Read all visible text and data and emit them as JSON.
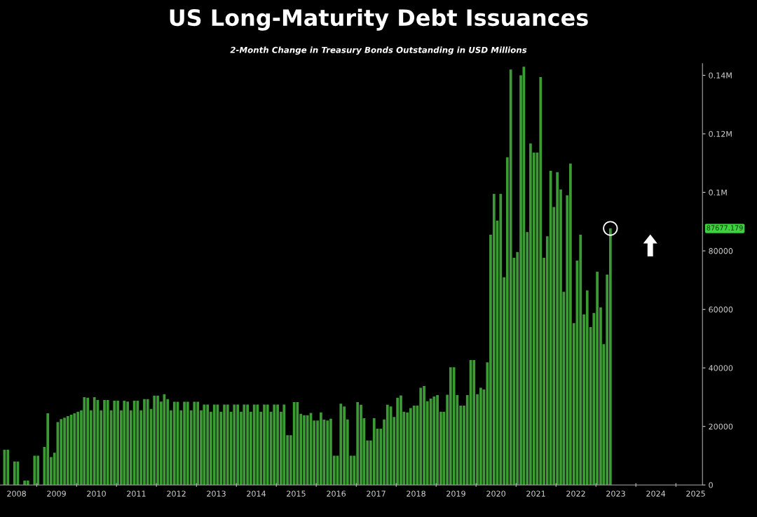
{
  "chart_data": {
    "type": "bar",
    "title": "US Long-Maturity Debt Issuances",
    "subtitle": "2-Month Change in Treasury Bonds Outstanding in USD Millions",
    "x": [
      "2008-03",
      "2008-04",
      "2008-05",
      "2008-06",
      "2008-07",
      "2008-08",
      "2008-09",
      "2008-10",
      "2008-11",
      "2008-12",
      "2009-01",
      "2009-02",
      "2009-03",
      "2009-04",
      "2009-05",
      "2009-06",
      "2009-07",
      "2009-08",
      "2009-09",
      "2009-10",
      "2009-11",
      "2009-12",
      "2010-01",
      "2010-02",
      "2010-03",
      "2010-04",
      "2010-05",
      "2010-06",
      "2010-07",
      "2010-08",
      "2010-09",
      "2010-10",
      "2010-11",
      "2010-12",
      "2011-01",
      "2011-02",
      "2011-03",
      "2011-04",
      "2011-05",
      "2011-06",
      "2011-07",
      "2011-08",
      "2011-09",
      "2011-10",
      "2011-11",
      "2011-12",
      "2012-01",
      "2012-02",
      "2012-03",
      "2012-04",
      "2012-05",
      "2012-06",
      "2012-07",
      "2012-08",
      "2012-09",
      "2012-10",
      "2012-11",
      "2012-12",
      "2013-01",
      "2013-02",
      "2013-03",
      "2013-04",
      "2013-05",
      "2013-06",
      "2013-07",
      "2013-08",
      "2013-09",
      "2013-10",
      "2013-11",
      "2013-12",
      "2014-01",
      "2014-02",
      "2014-03",
      "2014-04",
      "2014-05",
      "2014-06",
      "2014-07",
      "2014-08",
      "2014-09",
      "2014-10",
      "2014-11",
      "2014-12",
      "2015-01",
      "2015-02",
      "2015-03",
      "2015-04",
      "2015-05",
      "2015-06",
      "2015-07",
      "2015-08",
      "2015-09",
      "2015-10",
      "2015-11",
      "2015-12",
      "2016-01",
      "2016-02",
      "2016-03",
      "2016-04",
      "2016-05",
      "2016-06",
      "2016-07",
      "2016-08",
      "2016-09",
      "2016-10",
      "2016-11",
      "2016-12",
      "2017-01",
      "2017-02",
      "2017-03",
      "2017-04",
      "2017-05",
      "2017-06",
      "2017-07",
      "2017-08",
      "2017-09",
      "2017-10",
      "2017-11",
      "2017-12",
      "2018-01",
      "2018-02",
      "2018-03",
      "2018-04",
      "2018-05",
      "2018-06",
      "2018-07",
      "2018-08",
      "2018-09",
      "2018-10",
      "2018-11",
      "2018-12",
      "2019-01",
      "2019-02",
      "2019-03",
      "2019-04",
      "2019-05",
      "2019-06",
      "2019-07",
      "2019-08",
      "2019-09",
      "2019-10",
      "2019-11",
      "2019-12",
      "2020-01",
      "2020-02",
      "2020-03",
      "2020-04",
      "2020-05",
      "2020-06",
      "2020-07",
      "2020-08",
      "2020-09",
      "2020-10",
      "2020-11",
      "2020-12",
      "2021-01",
      "2021-02",
      "2021-03",
      "2021-04",
      "2021-05",
      "2021-06",
      "2021-07",
      "2021-08",
      "2021-09",
      "2021-10",
      "2021-11",
      "2021-12",
      "2022-01",
      "2022-02",
      "2022-03",
      "2022-04",
      "2022-05",
      "2022-06",
      "2022-07",
      "2022-08",
      "2022-09",
      "2022-10",
      "2022-11",
      "2022-12",
      "2023-01",
      "2023-02",
      "2023-03",
      "2023-04",
      "2023-05"
    ],
    "values": [
      12000,
      12000,
      0,
      8000,
      8000,
      0,
      1500,
      1500,
      0,
      10000,
      10000,
      0,
      13000,
      24500,
      9500,
      11000,
      21500,
      22500,
      23000,
      23500,
      24000,
      24500,
      25000,
      25500,
      30000,
      29800,
      25500,
      30000,
      29000,
      25500,
      29000,
      29000,
      25500,
      28800,
      28800,
      25500,
      28800,
      28500,
      25500,
      28800,
      28800,
      25500,
      29300,
      29300,
      26000,
      30500,
      30500,
      28500,
      31000,
      29300,
      25500,
      28400,
      28400,
      25500,
      28400,
      28400,
      25500,
      28400,
      28400,
      25500,
      27500,
      27500,
      25000,
      27500,
      27500,
      25000,
      27500,
      27500,
      25000,
      27500,
      27500,
      25000,
      27500,
      27500,
      25000,
      27500,
      27500,
      25000,
      27500,
      27500,
      25000,
      27500,
      27500,
      25000,
      27500,
      17000,
      17000,
      28300,
      28300,
      24300,
      23800,
      23800,
      24600,
      22000,
      22000,
      24800,
      22300,
      22000,
      22600,
      10000,
      10000,
      27800,
      26800,
      22400,
      10000,
      10000,
      28300,
      27400,
      22800,
      15200,
      15200,
      22800,
      19200,
      19200,
      22400,
      27400,
      26800,
      23200,
      29800,
      30600,
      25000,
      24800,
      26300,
      27100,
      27100,
      33200,
      33800,
      28600,
      29500,
      30200,
      30700,
      25000,
      25000,
      30800,
      40200,
      40200,
      30700,
      27100,
      27100,
      30700,
      42700,
      42700,
      31000,
      33200,
      32600,
      41900,
      85500,
      99500,
      90300,
      99500,
      71000,
      112000,
      142000,
      77600,
      79600,
      140000,
      142900,
      86400,
      116700,
      113600,
      113600,
      139400,
      77600,
      85000,
      107400,
      95000,
      106900,
      101000,
      66000,
      99000,
      109800,
      55300,
      76700,
      85500,
      58300,
      66500,
      53900,
      58800,
      72900,
      60700,
      48100,
      71900,
      87677.179
    ],
    "color": "#3c9b35",
    "xlim": [
      "2008-02-01",
      "2025-09-01"
    ],
    "xticks": [
      {
        "value": "2008-07-01",
        "label": "2008"
      },
      {
        "value": "2009-01-01",
        "label": null
      },
      {
        "value": "2009-07-01",
        "label": "2009"
      },
      {
        "value": "2010-01-01",
        "label": null
      },
      {
        "value": "2010-07-01",
        "label": "2010"
      },
      {
        "value": "2011-01-01",
        "label": null
      },
      {
        "value": "2011-07-01",
        "label": "2011"
      },
      {
        "value": "2012-01-01",
        "label": null
      },
      {
        "value": "2012-07-01",
        "label": "2012"
      },
      {
        "value": "2013-01-01",
        "label": null
      },
      {
        "value": "2013-07-01",
        "label": "2013"
      },
      {
        "value": "2014-01-01",
        "label": null
      },
      {
        "value": "2014-07-01",
        "label": "2014"
      },
      {
        "value": "2015-01-01",
        "label": null
      },
      {
        "value": "2015-07-01",
        "label": "2015"
      },
      {
        "value": "2016-01-01",
        "label": null
      },
      {
        "value": "2016-07-01",
        "label": "2016"
      },
      {
        "value": "2017-01-01",
        "label": null
      },
      {
        "value": "2017-07-01",
        "label": "2017"
      },
      {
        "value": "2018-01-01",
        "label": null
      },
      {
        "value": "2018-07-01",
        "label": "2018"
      },
      {
        "value": "2019-01-01",
        "label": null
      },
      {
        "value": "2019-07-01",
        "label": "2019"
      },
      {
        "value": "2020-01-01",
        "label": null
      },
      {
        "value": "2020-07-01",
        "label": "2020"
      },
      {
        "value": "2021-01-01",
        "label": null
      },
      {
        "value": "2021-07-01",
        "label": "2021"
      },
      {
        "value": "2022-01-01",
        "label": null
      },
      {
        "value": "2022-07-01",
        "label": "2022"
      },
      {
        "value": "2023-01-01",
        "label": null
      },
      {
        "value": "2023-07-01",
        "label": "2023"
      },
      {
        "value": "2024-01-01",
        "label": null
      },
      {
        "value": "2024-07-01",
        "label": "2024"
      },
      {
        "value": "2025-01-01",
        "label": null
      },
      {
        "value": "2025-07-01",
        "label": "2025"
      }
    ],
    "ylim": [
      0,
      144000
    ],
    "yticks": [
      0,
      20000,
      40000,
      60000,
      80000,
      {
        "value": 100000,
        "label": "0.1M"
      },
      {
        "value": 120000,
        "label": "0.12M"
      },
      {
        "value": 140000,
        "label": "0.14M"
      }
    ],
    "annotations": [
      "87677.179"
    ],
    "grid": false,
    "legend": false
  }
}
